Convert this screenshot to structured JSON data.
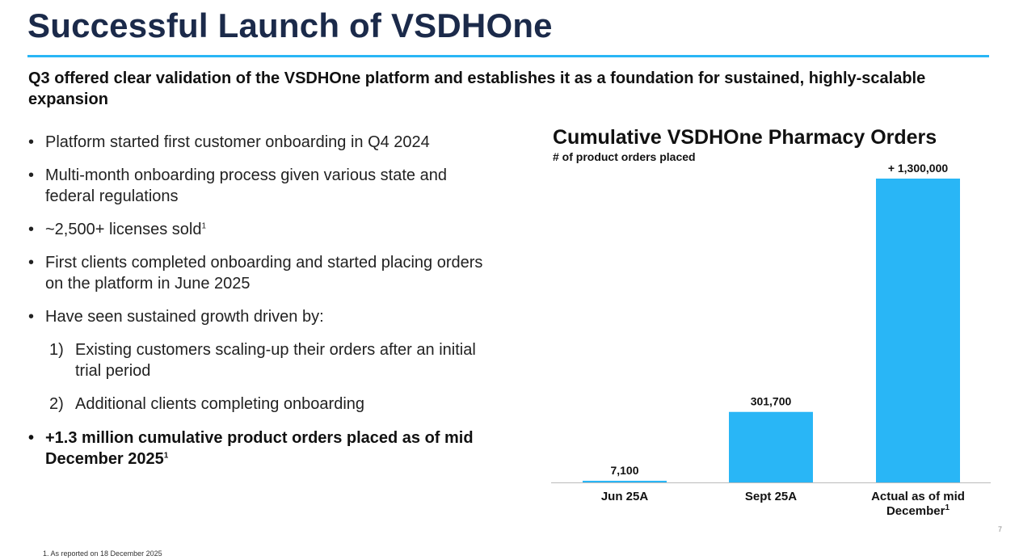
{
  "title": "Successful Launch of VSDHOne",
  "subtitle": "Q3 offered clear validation of the VSDHOne platform and establishes it as a foundation for sustained, highly-scalable expansion",
  "bullets": [
    {
      "text": "Platform started first customer onboarding in Q4 2024"
    },
    {
      "text": "Multi-month onboarding process given various state and federal regulations"
    },
    {
      "text": "~2,500+ licenses sold",
      "sup": "1"
    },
    {
      "text": "First clients completed onboarding and started placing orders on the platform in June 2025"
    },
    {
      "text": "Have seen sustained growth driven by:"
    },
    {
      "text": "+1.3 million cumulative product orders placed as of mid December 2025",
      "sup": "1"
    }
  ],
  "sub_items": [
    {
      "num": "1)",
      "text": "Existing customers scaling-up their orders after an initial trial period"
    },
    {
      "num": "2)",
      "text": "Additional clients completing onboarding"
    }
  ],
  "colors": {
    "title": "#1b2a4a",
    "accent": "#29b6f6",
    "bar": "#29b6f6",
    "axis": "#bbbbbb"
  },
  "chart_data": {
    "type": "bar",
    "title": "Cumulative VSDHOne Pharmacy Orders",
    "subtitle": "# of product orders placed",
    "categories": [
      "Jun 25A",
      "Sept 25A",
      "Actual as of mid December"
    ],
    "category_sup": [
      "",
      "",
      "1"
    ],
    "values": [
      7100,
      301700,
      1300000
    ],
    "data_labels": [
      "7,100",
      "301,700",
      "+ 1,300,000"
    ],
    "ylim": [
      0,
      1300000
    ],
    "grid": false,
    "legend": "none"
  },
  "footnote": "1.  As reported on 18 December 2025",
  "page_number": "7"
}
